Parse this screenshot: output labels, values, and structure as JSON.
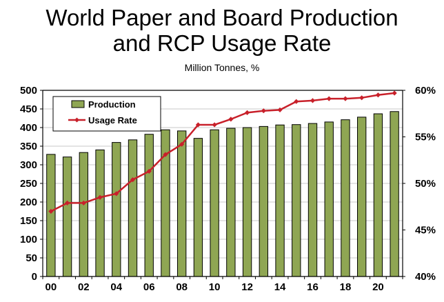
{
  "chart_data": {
    "type": "bar",
    "title_line1": "World Paper and Board Production",
    "title_line2": "and RCP Usage Rate",
    "subtitle": "Million Tonnes, %",
    "categories": [
      "00",
      "01",
      "02",
      "03",
      "04",
      "05",
      "06",
      "07",
      "08",
      "09",
      "10",
      "11",
      "12",
      "13",
      "14",
      "15",
      "16",
      "17",
      "18",
      "19",
      "20",
      "21"
    ],
    "x_tick_labels": [
      "00",
      "02",
      "04",
      "06",
      "08",
      "10",
      "12",
      "14",
      "16",
      "18",
      "20"
    ],
    "series": [
      {
        "name": "Production",
        "type": "bar",
        "axis": "left",
        "color": "#8fa653",
        "values": [
          328,
          321,
          333,
          340,
          360,
          367,
          382,
          394,
          391,
          371,
          394,
          398,
          400,
          403,
          407,
          408,
          411,
          415,
          421,
          428,
          437,
          443
        ]
      },
      {
        "name": "Usage Rate",
        "type": "line",
        "axis": "right",
        "color": "#c8202a",
        "values": [
          47.0,
          47.9,
          47.9,
          48.5,
          48.9,
          50.4,
          51.3,
          53.1,
          54.2,
          56.3,
          56.3,
          56.9,
          57.6,
          57.8,
          57.9,
          58.8,
          58.9,
          59.1,
          59.1,
          59.2,
          59.5,
          59.7
        ]
      }
    ],
    "y_left": {
      "min": 0,
      "max": 500,
      "step": 50,
      "ticks": [
        "0",
        "50",
        "100",
        "150",
        "200",
        "250",
        "300",
        "350",
        "400",
        "450",
        "500"
      ]
    },
    "y_right": {
      "min": 40,
      "max": 60,
      "step": 5,
      "ticks": [
        "40%",
        "45%",
        "50%",
        "55%",
        "60%"
      ]
    },
    "legend_position": "top-left",
    "grid": true
  }
}
